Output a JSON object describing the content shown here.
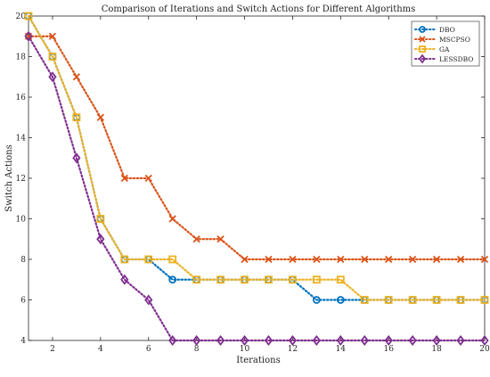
{
  "chart_data": {
    "type": "line",
    "title": "Comparison of Iterations and Switch Actions for Different Algorithms",
    "xlabel": "Iterations",
    "ylabel": "Switch Actions",
    "xlim": [
      1,
      20
    ],
    "ylim": [
      4,
      20
    ],
    "xticks": [
      2,
      4,
      6,
      8,
      10,
      12,
      14,
      16,
      18,
      20
    ],
    "yticks": [
      4,
      6,
      8,
      10,
      12,
      14,
      16,
      18,
      20
    ],
    "grid": false,
    "legend_position": "top-right",
    "x": [
      1,
      2,
      3,
      4,
      5,
      6,
      7,
      8,
      9,
      10,
      11,
      12,
      13,
      14,
      15,
      16,
      17,
      18,
      19,
      20
    ],
    "series": [
      {
        "name": "DBO",
        "color": "#0072BD",
        "marker": "circle",
        "values": [
          20,
          18,
          15,
          10,
          8,
          8,
          7,
          7,
          7,
          7,
          7,
          7,
          6,
          6,
          6,
          6,
          6,
          6,
          6,
          6
        ]
      },
      {
        "name": "MSCPSO",
        "color": "#D95319",
        "marker": "x",
        "values": [
          19,
          19,
          17,
          15,
          12,
          12,
          10,
          9,
          9,
          8,
          8,
          8,
          8,
          8,
          8,
          8,
          8,
          8,
          8,
          8
        ]
      },
      {
        "name": "GA",
        "color": "#EDB120",
        "marker": "square",
        "values": [
          20,
          18,
          15,
          10,
          8,
          8,
          8,
          7,
          7,
          7,
          7,
          7,
          7,
          7,
          6,
          6,
          6,
          6,
          6,
          6
        ]
      },
      {
        "name": "LESSDBO",
        "color": "#7E2F8E",
        "marker": "diamond",
        "values": [
          19,
          17,
          13,
          9,
          7,
          6,
          4,
          4,
          4,
          4,
          4,
          4,
          4,
          4,
          4,
          4,
          4,
          4,
          4,
          4
        ]
      }
    ]
  }
}
